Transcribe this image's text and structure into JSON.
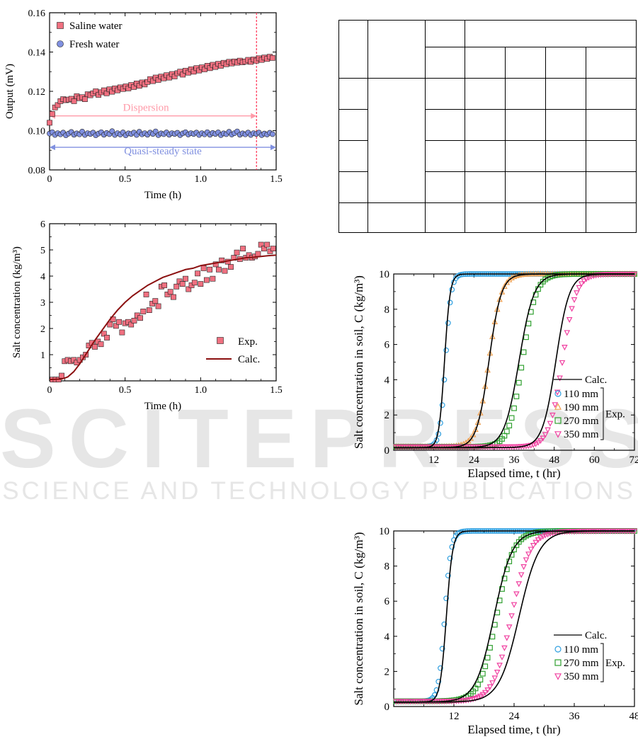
{
  "watermark": {
    "main": "SCITEPRESS",
    "sub": "SCIENCE AND TECHNOLOGY PUBLICATIONS"
  },
  "empty_table": {
    "rows": 7,
    "cols": 8
  },
  "chart_data": [
    {
      "id": "output",
      "type": "scatter",
      "title": "",
      "xlabel": "Time (h)",
      "ylabel": "Output (mV)",
      "xlim": [
        0,
        1.5
      ],
      "ylim": [
        0.08,
        0.16
      ],
      "xticks": [
        "0",
        "0.5",
        "1.0",
        "1.5"
      ],
      "yticks": [
        "0.08",
        "0.10",
        "0.12",
        "0.14",
        "0.16"
      ],
      "legend": "top-left",
      "series": [
        {
          "name": "Saline water",
          "color": "#f07080",
          "marker": "square",
          "x": [
            0.0,
            0.018,
            0.036,
            0.054,
            0.072,
            0.09,
            0.108,
            0.126,
            0.144,
            0.162,
            0.18,
            0.198,
            0.216,
            0.234,
            0.252,
            0.27,
            0.288,
            0.306,
            0.324,
            0.342,
            0.36,
            0.378,
            0.396,
            0.414,
            0.432,
            0.45,
            0.468,
            0.486,
            0.504,
            0.522,
            0.54,
            0.558,
            0.576,
            0.594,
            0.612,
            0.63,
            0.648,
            0.666,
            0.684,
            0.702,
            0.72,
            0.738,
            0.756,
            0.774,
            0.792,
            0.81,
            0.828,
            0.846,
            0.864,
            0.882,
            0.9,
            0.918,
            0.936,
            0.954,
            0.972,
            0.99,
            1.008,
            1.026,
            1.044,
            1.062,
            1.08,
            1.098,
            1.116,
            1.134,
            1.152,
            1.17,
            1.188,
            1.206,
            1.224,
            1.242,
            1.26,
            1.278,
            1.296,
            1.314,
            1.332,
            1.35,
            1.368,
            1.386,
            1.404,
            1.422,
            1.44,
            1.458,
            1.476
          ],
          "y": [
            0.104,
            0.1085,
            0.1118,
            0.113,
            0.115,
            0.116,
            0.1155,
            0.1158,
            0.1162,
            0.115,
            0.1175,
            0.1165,
            0.117,
            0.116,
            0.1185,
            0.118,
            0.119,
            0.12,
            0.1182,
            0.1195,
            0.1205,
            0.119,
            0.121,
            0.1198,
            0.1215,
            0.1205,
            0.122,
            0.1212,
            0.1225,
            0.1215,
            0.1232,
            0.1222,
            0.124,
            0.1228,
            0.1245,
            0.1235,
            0.1248,
            0.1262,
            0.1252,
            0.127,
            0.1258,
            0.1275,
            0.1266,
            0.1282,
            0.127,
            0.1288,
            0.1276,
            0.1292,
            0.13,
            0.1285,
            0.1305,
            0.1295,
            0.1312,
            0.13,
            0.1318,
            0.1306,
            0.1322,
            0.1312,
            0.133,
            0.1318,
            0.1335,
            0.1324,
            0.134,
            0.133,
            0.1345,
            0.1338,
            0.135,
            0.1342,
            0.1352,
            0.1346,
            0.1356,
            0.1348,
            0.1352,
            0.136,
            0.135,
            0.1362,
            0.1356,
            0.1368,
            0.136,
            0.1372,
            0.1365,
            0.1376,
            0.137
          ]
        },
        {
          "name": "Fresh water",
          "color": "#8090e0",
          "marker": "circle",
          "x": [
            0.0,
            0.018,
            0.036,
            0.054,
            0.072,
            0.09,
            0.108,
            0.126,
            0.144,
            0.162,
            0.18,
            0.198,
            0.216,
            0.234,
            0.252,
            0.27,
            0.288,
            0.306,
            0.324,
            0.342,
            0.36,
            0.378,
            0.396,
            0.414,
            0.432,
            0.45,
            0.468,
            0.486,
            0.504,
            0.522,
            0.54,
            0.558,
            0.576,
            0.594,
            0.612,
            0.63,
            0.648,
            0.666,
            0.684,
            0.702,
            0.72,
            0.738,
            0.756,
            0.774,
            0.792,
            0.81,
            0.828,
            0.846,
            0.864,
            0.882,
            0.9,
            0.918,
            0.936,
            0.954,
            0.972,
            0.99,
            1.008,
            1.026,
            1.044,
            1.062,
            1.08,
            1.098,
            1.116,
            1.134,
            1.152,
            1.17,
            1.188,
            1.206,
            1.224,
            1.242,
            1.26,
            1.278,
            1.296,
            1.314,
            1.332,
            1.35,
            1.368,
            1.386,
            1.404,
            1.422,
            1.44,
            1.458,
            1.476
          ],
          "y": [
            0.0985,
            0.0992,
            0.0978,
            0.0987,
            0.0981,
            0.099,
            0.0976,
            0.0985,
            0.0993,
            0.0979,
            0.0986,
            0.0981,
            0.0995,
            0.0978,
            0.0987,
            0.0983,
            0.099,
            0.0976,
            0.0985,
            0.0992,
            0.0979,
            0.0988,
            0.0982,
            0.0997,
            0.0978,
            0.0987,
            0.098,
            0.0991,
            0.0976,
            0.0986,
            0.0983,
            0.099,
            0.0978,
            0.0994,
            0.0981,
            0.0987,
            0.0979,
            0.099,
            0.0983,
            0.0996,
            0.0977,
            0.0986,
            0.0982,
            0.0991,
            0.0979,
            0.0987,
            0.0983,
            0.0989,
            0.0977,
            0.0986,
            0.0992,
            0.098,
            0.0987,
            0.0983,
            0.099,
            0.0978,
            0.0987,
            0.0981,
            0.0992,
            0.0979,
            0.0988,
            0.0983,
            0.0991,
            0.0977,
            0.0986,
            0.0982,
            0.0994,
            0.098,
            0.0987,
            0.0996,
            0.0979,
            0.0986,
            0.0981,
            0.099,
            0.0978,
            0.0987,
            0.0983,
            0.099,
            0.0977,
            0.0985,
            0.098,
            0.0989,
            0.0982
          ]
        }
      ],
      "annotations": [
        {
          "type": "vline",
          "x": 1.37,
          "color": "#ff4060"
        },
        {
          "type": "arrow",
          "text": "Dispersion",
          "x0": 0.0,
          "x1": 1.37,
          "y": 0.1075,
          "color": "#ff9aa8"
        },
        {
          "type": "arrow",
          "text": "Quasi-steady state",
          "x0": 0.0,
          "x1": 1.5,
          "y": 0.0915,
          "color": "#8090e0"
        }
      ]
    },
    {
      "id": "salt1",
      "type": "scatter",
      "title": "",
      "xlabel": "Time (h)",
      "ylabel": "Salt concentration (kg/m³)",
      "xlim": [
        0,
        1.5
      ],
      "ylim": [
        0,
        6
      ],
      "xticks": [
        "0",
        "0.5",
        "1.0",
        "1.5"
      ],
      "yticks": [
        "1",
        "2",
        "3",
        "4",
        "5",
        "6"
      ],
      "legend": "bottom-right",
      "series": [
        {
          "name": "Exp.",
          "color": "#f07080",
          "marker": "square",
          "x": [
            0.02,
            0.04,
            0.06,
            0.08,
            0.1,
            0.12,
            0.14,
            0.16,
            0.18,
            0.2,
            0.22,
            0.24,
            0.26,
            0.28,
            0.3,
            0.32,
            0.34,
            0.36,
            0.38,
            0.4,
            0.42,
            0.44,
            0.46,
            0.48,
            0.5,
            0.52,
            0.54,
            0.56,
            0.58,
            0.6,
            0.62,
            0.64,
            0.66,
            0.68,
            0.7,
            0.72,
            0.74,
            0.76,
            0.78,
            0.8,
            0.82,
            0.84,
            0.86,
            0.88,
            0.9,
            0.92,
            0.94,
            0.96,
            0.98,
            1.0,
            1.02,
            1.04,
            1.06,
            1.08,
            1.1,
            1.12,
            1.14,
            1.16,
            1.18,
            1.2,
            1.22,
            1.24,
            1.26,
            1.28,
            1.3,
            1.32,
            1.34,
            1.36,
            1.38,
            1.4,
            1.42,
            1.44,
            1.46,
            1.48
          ],
          "y": [
            0.05,
            0.05,
            0.05,
            0.2,
            0.75,
            0.8,
            0.75,
            0.8,
            0.7,
            0.8,
            0.9,
            1.0,
            1.35,
            1.45,
            1.3,
            1.5,
            1.4,
            1.8,
            1.65,
            2.15,
            2.35,
            2.1,
            2.25,
            1.85,
            2.2,
            2.25,
            2.15,
            2.3,
            2.5,
            2.4,
            2.65,
            3.3,
            2.7,
            2.95,
            3.05,
            2.85,
            3.6,
            3.65,
            3.3,
            3.4,
            3.2,
            3.6,
            3.8,
            3.7,
            3.9,
            3.5,
            3.65,
            3.75,
            4.1,
            3.7,
            4.3,
            3.85,
            4.25,
            3.9,
            4.45,
            4.25,
            4.6,
            4.2,
            4.55,
            4.35,
            4.7,
            4.9,
            4.65,
            5.05,
            4.7,
            4.8,
            4.7,
            4.75,
            4.85,
            5.2,
            5.05,
            5.2,
            4.95,
            5.05
          ]
        },
        {
          "name": "Calc.",
          "color": "#8b1010",
          "marker": "line",
          "x": [
            0.0,
            0.08,
            0.12,
            0.16,
            0.2,
            0.25,
            0.3,
            0.35,
            0.4,
            0.45,
            0.5,
            0.55,
            0.6,
            0.65,
            0.7,
            0.75,
            0.8,
            0.85,
            0.9,
            0.95,
            1.0,
            1.05,
            1.1,
            1.15,
            1.2,
            1.25,
            1.3,
            1.35,
            1.4,
            1.45,
            1.5
          ],
          "y": [
            0.05,
            0.07,
            0.15,
            0.35,
            0.65,
            1.1,
            1.55,
            1.95,
            2.35,
            2.7,
            3.0,
            3.25,
            3.45,
            3.65,
            3.8,
            3.95,
            4.05,
            4.15,
            4.25,
            4.3,
            4.4,
            4.45,
            4.5,
            4.55,
            4.6,
            4.65,
            4.7,
            4.72,
            4.75,
            4.78,
            4.8
          ]
        }
      ]
    },
    {
      "id": "soil1",
      "type": "scatter",
      "title": "",
      "xlabel": "Elapsed time, t (hr)",
      "ylabel": "Salt concentration in soil, C (kg/m³)",
      "xlim": [
        0,
        72
      ],
      "ylim": [
        0,
        10
      ],
      "xticks": [
        "12",
        "24",
        "36",
        "48",
        "60",
        "72"
      ],
      "yticks": [
        "0",
        "2",
        "4",
        "6",
        "8",
        "10"
      ],
      "legend": "bottom-right",
      "legend_entries": {
        "calc": "Calc.",
        "exp": "Exp."
      },
      "series": [
        {
          "name": "110 mm",
          "color": "#30a0e0",
          "marker": "circle",
          "t50": 15.5,
          "k": 1.2
        },
        {
          "name": "190 mm",
          "color": "#f0a050",
          "marker": "triangle-up",
          "t50": 28.5,
          "k": 0.55
        },
        {
          "name": "270 mm",
          "color": "#30a030",
          "marker": "square",
          "t50": 38.5,
          "k": 0.5
        },
        {
          "name": "350 mm",
          "color": "#f040a0",
          "marker": "triangle-down",
          "t50": 50.5,
          "k": 0.5
        }
      ],
      "calc_lines": [
        {
          "t50": 15.2,
          "k": 1.2
        },
        {
          "t50": 28.5,
          "k": 0.55
        },
        {
          "t50": 37.5,
          "k": 0.45
        },
        {
          "t50": 48.5,
          "k": 0.5
        }
      ],
      "baseline": 0.2,
      "plateau": 10.0
    },
    {
      "id": "soil2",
      "type": "scatter",
      "title": "",
      "xlabel": "Elapsed time, t (hr)",
      "ylabel": "Salt concentration in soil, C (kg/m³)",
      "xlim": [
        0,
        48
      ],
      "ylim": [
        0,
        10
      ],
      "xticks": [
        "12",
        "24",
        "36",
        "48"
      ],
      "yticks": [
        "0",
        "2",
        "4",
        "6",
        "8",
        "10"
      ],
      "legend": "bottom-right",
      "legend_entries": {
        "calc": "Calc.",
        "exp": "Exp."
      },
      "series": [
        {
          "name": "110 mm",
          "color": "#30a0e0",
          "marker": "circle",
          "t50": 10.2,
          "k": 1.6
        },
        {
          "name": "270 mm",
          "color": "#30a030",
          "marker": "square",
          "t50": 20.5,
          "k": 0.6
        },
        {
          "name": "350 mm",
          "color": "#f040a0",
          "marker": "triangle-down",
          "t50": 23.5,
          "k": 0.55
        }
      ],
      "calc_lines": [
        {
          "t50": 10.5,
          "k": 1.6
        },
        {
          "t50": 20.0,
          "k": 0.55
        },
        {
          "t50": 25.0,
          "k": 0.5
        }
      ],
      "baseline": 0.3,
      "plateau": 10.0
    }
  ]
}
